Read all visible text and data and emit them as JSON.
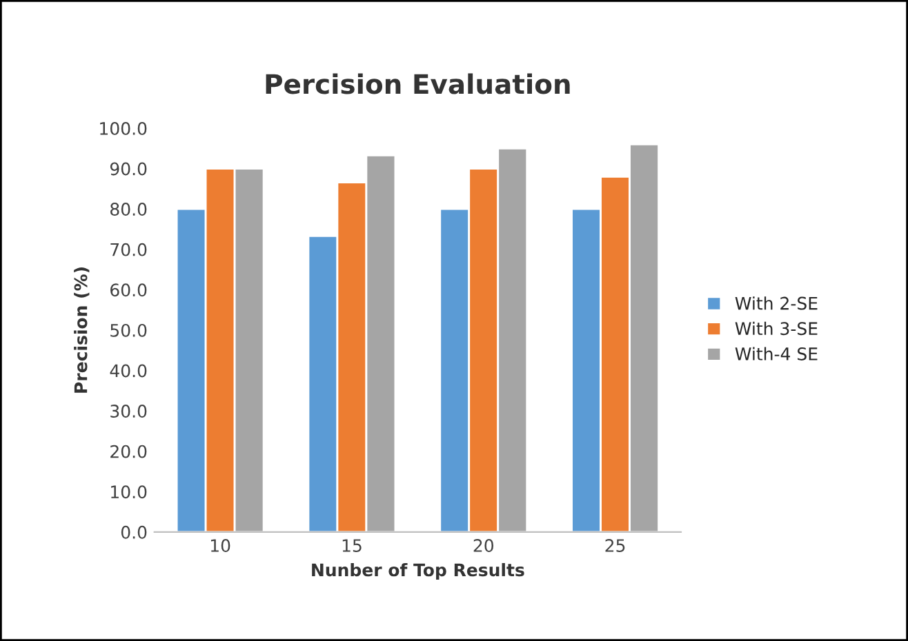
{
  "chart_data": {
    "type": "bar",
    "title": "Percision Evaluation",
    "xlabel": "Nunber of Top Results",
    "ylabel": "Precision (%)",
    "categories": [
      "10",
      "15",
      "20",
      "25"
    ],
    "series": [
      {
        "name": "With 2-SE",
        "color": "#5b9bd5",
        "values": [
          80,
          73.3,
          80,
          80
        ]
      },
      {
        "name": "With 3-SE",
        "color": "#ed7d31",
        "values": [
          90,
          86.6,
          90,
          88
        ]
      },
      {
        "name": "With-4 SE",
        "color": "#a5a5a5",
        "values": [
          90,
          93.3,
          95,
          96
        ]
      }
    ],
    "ylim": [
      0,
      100
    ],
    "yticks": [
      {
        "value": 0,
        "label": "0.0"
      },
      {
        "value": 10,
        "label": "10.0"
      },
      {
        "value": 20,
        "label": "20.0"
      },
      {
        "value": 30,
        "label": "30.0"
      },
      {
        "value": 40,
        "label": "40.0"
      },
      {
        "value": 50,
        "label": "50.0"
      },
      {
        "value": 60,
        "label": "60.0"
      },
      {
        "value": 70,
        "label": "70.0"
      },
      {
        "value": 80,
        "label": "80.0"
      },
      {
        "value": 90,
        "label": "90.0"
      },
      {
        "value": 100,
        "label": "100.0"
      }
    ],
    "grid": false,
    "legend": "right"
  }
}
